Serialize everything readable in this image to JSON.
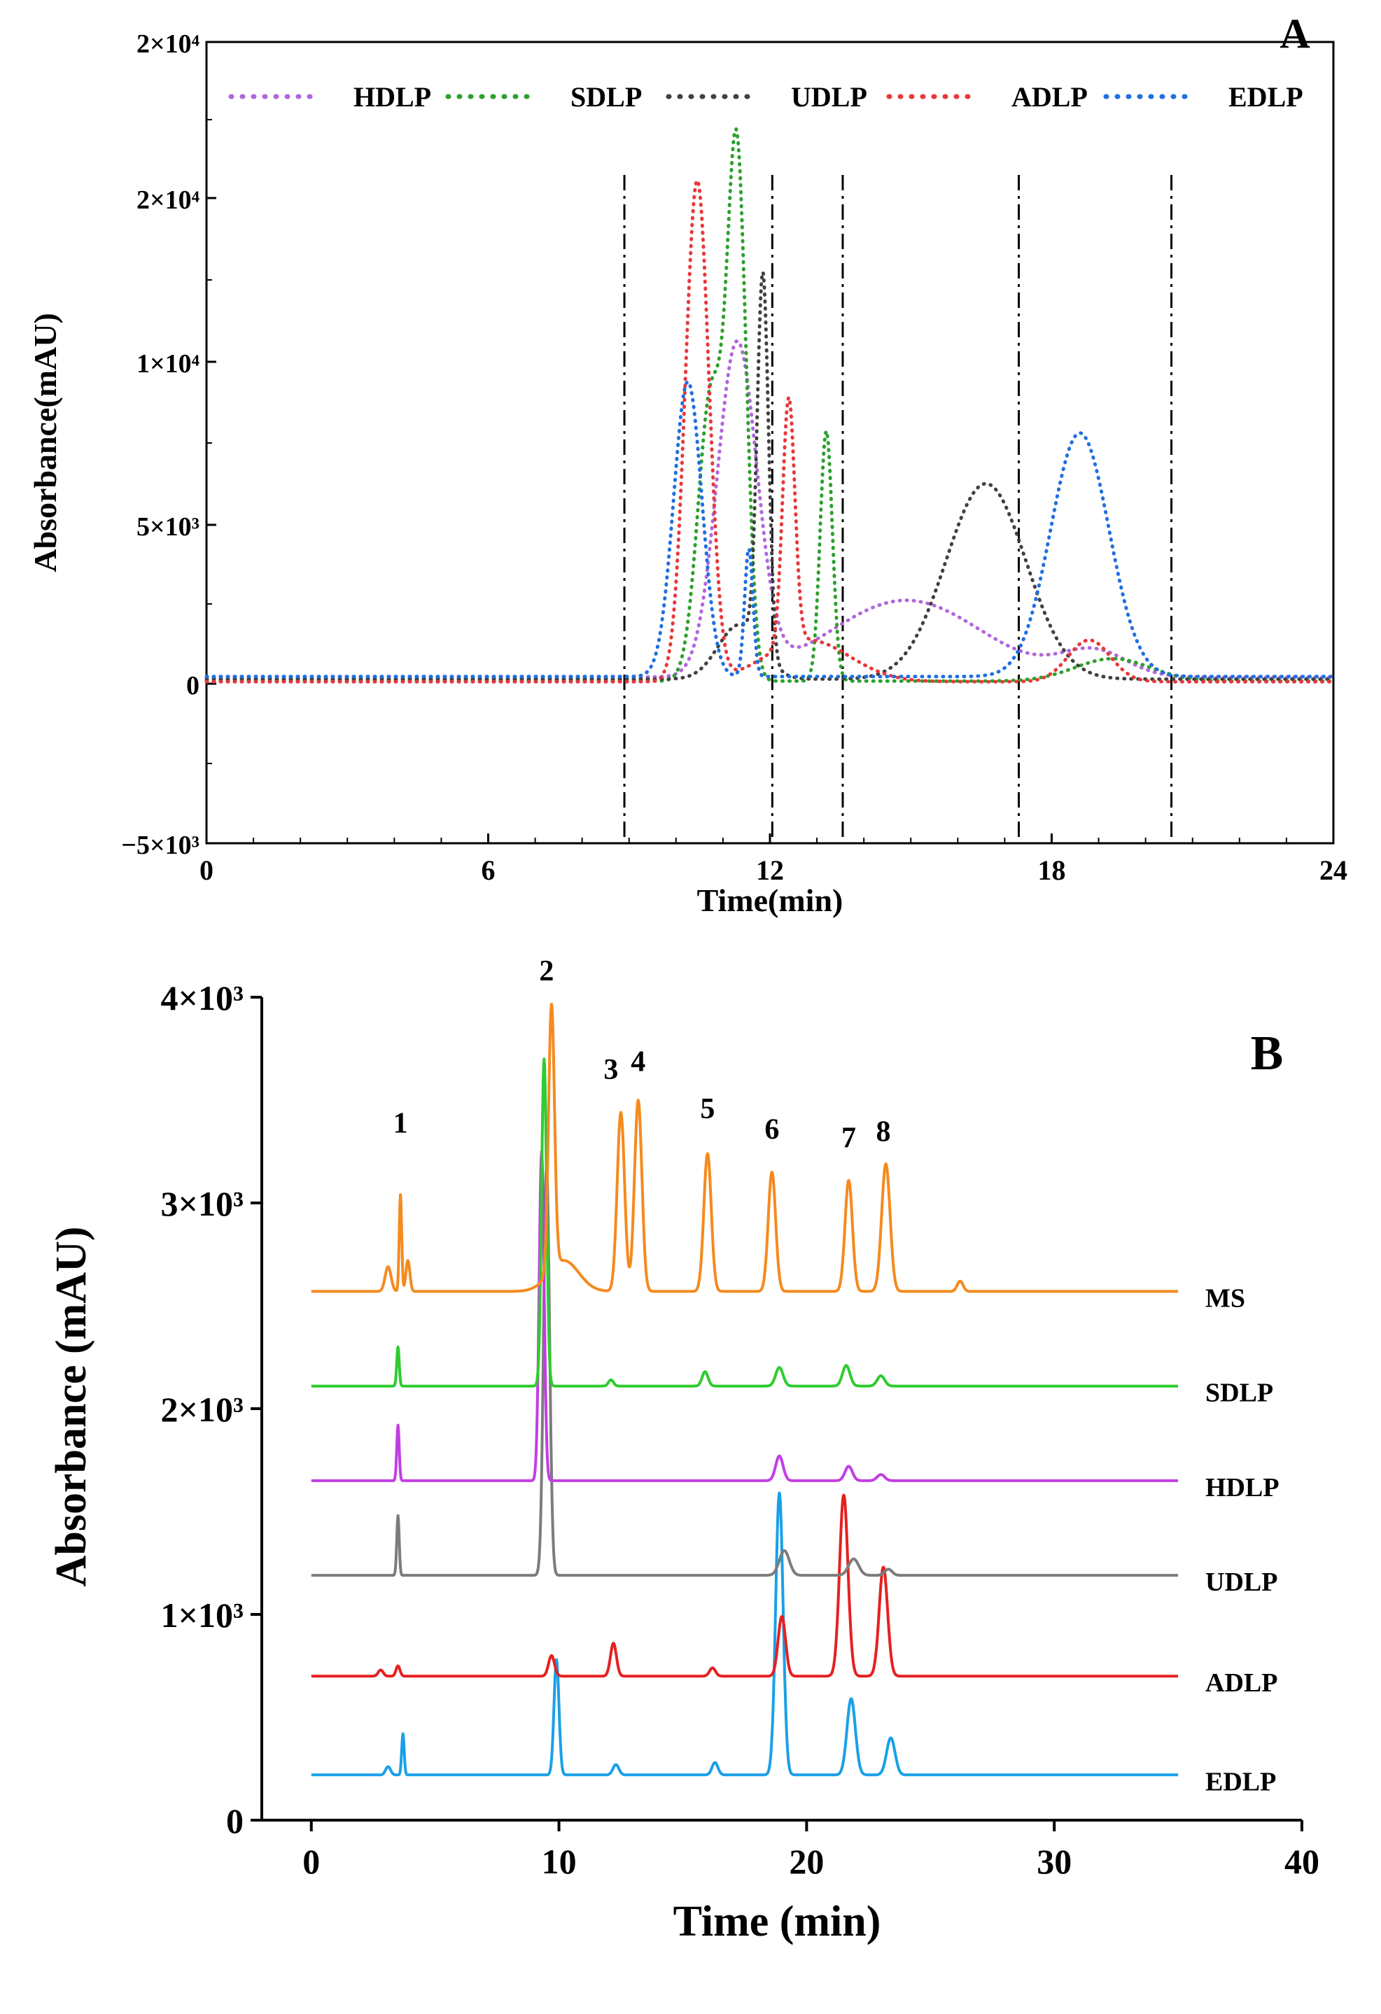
{
  "chart_data": [
    {
      "panel_label": "A",
      "type": "line",
      "line_style": "dotted",
      "xlabel": "Time(min)",
      "ylabel": "Absorbance(mAU)",
      "xlim": [
        0,
        24
      ],
      "ylim": [
        -5000,
        20000
      ],
      "x_ticks": [
        {
          "value": 0,
          "label": "0"
        },
        {
          "value": 6,
          "label": "6"
        },
        {
          "value": 12,
          "label": "12"
        },
        {
          "value": 18,
          "label": "18"
        },
        {
          "value": 24,
          "label": "24"
        }
      ],
      "y_ticks": [
        {
          "value": -5000,
          "label": "−5×10³"
        },
        {
          "value": 0,
          "label": "0"
        },
        {
          "value": 5000,
          "label": "5×10³"
        },
        {
          "value": 10000,
          "label": "1×10⁴"
        },
        {
          "value": 15000,
          "label": "2×10⁴"
        },
        {
          "value": 20000,
          "label": "2×10⁴"
        }
      ],
      "vertical_dashed_lines": [
        8.9,
        12.05,
        13.55,
        17.3,
        20.55
      ],
      "legend": [
        "HDLP",
        "SDLP",
        "UDLP",
        "ADLP",
        "EDLP"
      ],
      "legend_position": "top",
      "series": [
        {
          "name": "HDLP",
          "color": "#b066dd",
          "baseline": 180,
          "peaks": [
            [
              11.3,
              10300,
              0.42
            ],
            [
              14.9,
              2400,
              1.6
            ],
            [
              18.9,
              800,
              0.7
            ]
          ]
        },
        {
          "name": "SDLP",
          "color": "#2ca02c",
          "baseline": 60,
          "peaks": [
            [
              10.75,
              9000,
              0.28
            ],
            [
              11.3,
              15800,
              0.2
            ],
            [
              13.2,
              7800,
              0.13
            ],
            [
              19.3,
              700,
              0.8
            ]
          ]
        },
        {
          "name": "UDLP",
          "color": "#404040",
          "baseline": 120,
          "peaks": [
            [
              11.35,
              1700,
              0.45
            ],
            [
              11.85,
              11800,
              0.12
            ],
            [
              16.6,
              6100,
              0.85
            ]
          ]
        },
        {
          "name": "ADLP",
          "color": "#e8383b",
          "baseline": 40,
          "peaks": [
            [
              10.45,
              15600,
              0.25
            ],
            [
              12.4,
              7700,
              0.13
            ],
            [
              12.8,
              1300,
              0.9
            ],
            [
              18.8,
              1300,
              0.45
            ]
          ]
        },
        {
          "name": "EDLP",
          "color": "#1f6fe0",
          "baseline": 200,
          "peaks": [
            [
              10.25,
              9200,
              0.3
            ],
            [
              11.55,
              4000,
              0.09
            ],
            [
              18.6,
              7600,
              0.62
            ]
          ]
        }
      ]
    },
    {
      "panel_label": "B",
      "type": "line",
      "line_style": "solid",
      "xlabel": "Time (min)",
      "ylabel": "Absorbance (mAU)",
      "xlim": [
        -2,
        40
      ],
      "ylim": [
        0,
        4000
      ],
      "x_ticks": [
        {
          "value": 0,
          "label": "0"
        },
        {
          "value": 10,
          "label": "10"
        },
        {
          "value": 20,
          "label": "20"
        },
        {
          "value": 30,
          "label": "30"
        },
        {
          "value": 40,
          "label": "40"
        }
      ],
      "y_ticks": [
        {
          "value": 0,
          "label": "0"
        },
        {
          "value": 1000,
          "label": "1×10³"
        },
        {
          "value": 2000,
          "label": "2×10³"
        },
        {
          "value": 3000,
          "label": "3×10³"
        },
        {
          "value": 4000,
          "label": "4×10³"
        }
      ],
      "peak_labels": [
        {
          "label": "1",
          "x": 3.6,
          "y": 3280
        },
        {
          "label": "2",
          "x": 9.5,
          "y": 4020
        },
        {
          "label": "3",
          "x": 12.1,
          "y": 3540
        },
        {
          "label": "4",
          "x": 13.2,
          "y": 3580
        },
        {
          "label": "5",
          "x": 16.0,
          "y": 3350
        },
        {
          "label": "6",
          "x": 18.6,
          "y": 3250
        },
        {
          "label": "7",
          "x": 21.7,
          "y": 3210
        },
        {
          "label": "8",
          "x": 23.1,
          "y": 3240
        }
      ],
      "series": [
        {
          "name": "MS",
          "color": "#f58a1f",
          "baseline": 2570,
          "peaks": [
            [
              3.1,
              120,
              0.12
            ],
            [
              3.6,
              470,
              0.05
            ],
            [
              3.9,
              150,
              0.08
            ],
            [
              9.7,
              1290,
              0.12
            ],
            [
              10.2,
              150,
              0.6
            ],
            [
              12.5,
              870,
              0.15
            ],
            [
              13.2,
              930,
              0.15
            ],
            [
              16.0,
              670,
              0.15
            ],
            [
              18.6,
              580,
              0.15
            ],
            [
              21.7,
              540,
              0.15
            ],
            [
              23.2,
              620,
              0.17
            ],
            [
              26.2,
              50,
              0.12
            ]
          ]
        },
        {
          "name": "SDLP",
          "color": "#2fcb2f",
          "baseline": 2110,
          "peaks": [
            [
              3.5,
              190,
              0.05
            ],
            [
              9.4,
              1590,
              0.1
            ],
            [
              12.1,
              30,
              0.1
            ],
            [
              15.9,
              70,
              0.12
            ],
            [
              18.9,
              90,
              0.15
            ],
            [
              21.6,
              100,
              0.15
            ],
            [
              23.0,
              50,
              0.15
            ]
          ]
        },
        {
          "name": "HDLP",
          "color": "#c23ee3",
          "baseline": 1650,
          "peaks": [
            [
              3.5,
              270,
              0.05
            ],
            [
              9.3,
              1600,
              0.1
            ],
            [
              18.9,
              120,
              0.15
            ],
            [
              21.7,
              70,
              0.15
            ],
            [
              23.0,
              30,
              0.15
            ]
          ]
        },
        {
          "name": "UDLP",
          "color": "#7c7c7c",
          "baseline": 1190,
          "peaks": [
            [
              3.5,
              290,
              0.05
            ],
            [
              9.5,
              1990,
              0.12
            ],
            [
              19.1,
              120,
              0.2
            ],
            [
              21.9,
              80,
              0.2
            ],
            [
              23.3,
              30,
              0.15
            ]
          ]
        },
        {
          "name": "ADLP",
          "color": "#e62020",
          "baseline": 700,
          "peaks": [
            [
              2.8,
              30,
              0.1
            ],
            [
              3.5,
              50,
              0.08
            ],
            [
              9.7,
              100,
              0.12
            ],
            [
              12.2,
              160,
              0.12
            ],
            [
              16.2,
              40,
              0.12
            ],
            [
              19.0,
              290,
              0.15
            ],
            [
              21.5,
              880,
              0.17
            ],
            [
              23.1,
              530,
              0.17
            ]
          ]
        },
        {
          "name": "EDLP",
          "color": "#1aa0e8",
          "baseline": 220,
          "peaks": [
            [
              3.1,
              40,
              0.1
            ],
            [
              3.7,
              200,
              0.05
            ],
            [
              9.9,
              560,
              0.1
            ],
            [
              12.3,
              50,
              0.12
            ],
            [
              16.3,
              60,
              0.12
            ],
            [
              18.9,
              1370,
              0.15
            ],
            [
              21.8,
              370,
              0.17
            ],
            [
              23.4,
              180,
              0.17
            ]
          ]
        }
      ]
    }
  ]
}
